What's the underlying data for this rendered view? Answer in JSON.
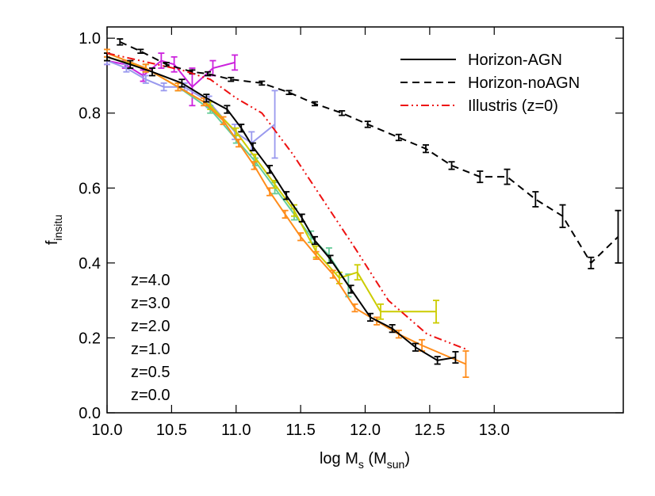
{
  "chart_data": {
    "type": "line",
    "xlabel_parts": [
      {
        "text": "log M"
      },
      {
        "text": "s",
        "sub": true
      },
      {
        "text": " (M"
      },
      {
        "text": "sun",
        "sub": true
      },
      {
        "text": ")"
      }
    ],
    "ylabel_parts": [
      {
        "text": "f"
      },
      {
        "text": "insitu",
        "sub": true
      }
    ],
    "xlim": [
      10,
      14
    ],
    "ylim": [
      0,
      1.03
    ],
    "xticks": [
      {
        "value": 10,
        "label": "10.0"
      },
      10.5,
      {
        "value": 11,
        "label": "11.0"
      },
      11.5,
      {
        "value": 12,
        "label": "12.0"
      },
      12.5,
      {
        "value": 13,
        "label": "13.0"
      }
    ],
    "yticks": [
      {
        "value": 0,
        "label": "0.0"
      },
      0.2,
      0.4,
      0.6,
      0.8,
      {
        "value": 1,
        "label": "1.0"
      }
    ],
    "legend_extra": [
      {
        "name": "Horizon-AGN",
        "color": "#000000",
        "dash": "solid"
      }
    ],
    "series": [
      {
        "name": "z=4.0",
        "color": "#cc22dd",
        "dash": "solid",
        "legend": "label",
        "x": [
          10.0,
          10.14,
          10.28,
          10.42,
          10.52,
          10.66,
          10.82,
          10.99
        ],
        "values": [
          0.94,
          0.93,
          0.9,
          0.94,
          0.93,
          0.87,
          0.92,
          0.935
        ],
        "errors": [
          0.01,
          0.01,
          0.015,
          0.02,
          0.02,
          0.05,
          0.02,
          0.02
        ]
      },
      {
        "name": "z=3.0",
        "color": "#9999ee",
        "dash": "solid",
        "legend": "label",
        "x": [
          10.0,
          10.15,
          10.3,
          10.44,
          10.6,
          10.79,
          10.99,
          11.12,
          11.3
        ],
        "values": [
          0.94,
          0.92,
          0.89,
          0.87,
          0.87,
          0.83,
          0.75,
          0.72,
          0.77
        ],
        "errors": [
          0.01,
          0.01,
          0.01,
          0.01,
          0.01,
          0.015,
          0.02,
          0.03,
          0.09
        ]
      },
      {
        "name": "z=2.0",
        "color": "#66cc99",
        "dash": "solid",
        "legend": "label",
        "x": [
          10.0,
          10.3,
          10.55,
          10.8,
          11.0,
          11.15,
          11.3,
          11.45,
          11.58,
          11.72,
          11.87
        ],
        "values": [
          0.96,
          0.92,
          0.87,
          0.81,
          0.73,
          0.67,
          0.6,
          0.53,
          0.47,
          0.42,
          0.34
        ],
        "errors": [
          0.01,
          0.01,
          0.01,
          0.01,
          0.01,
          0.01,
          0.015,
          0.015,
          0.015,
          0.02,
          0.03
        ]
      },
      {
        "name": "z=1.0",
        "color": "#cccc00",
        "dash": "solid",
        "legend": "label",
        "x": [
          10.0,
          10.3,
          10.55,
          10.8,
          11.0,
          11.15,
          11.3,
          11.45,
          11.62,
          11.8,
          11.94,
          12.12,
          12.55
        ],
        "values": [
          0.95,
          0.92,
          0.87,
          0.82,
          0.75,
          0.68,
          0.61,
          0.54,
          0.43,
          0.36,
          0.375,
          0.27,
          0.27
        ],
        "errors": [
          0.01,
          0.01,
          0.01,
          0.01,
          0.01,
          0.01,
          0.01,
          0.015,
          0.015,
          0.015,
          0.02,
          0.02,
          0.03
        ]
      },
      {
        "name": "z=0.5",
        "color": "#ff8c1a",
        "dash": "solid",
        "legend": "label",
        "x": [
          10.0,
          10.3,
          10.55,
          10.75,
          10.9,
          11.02,
          11.14,
          11.26,
          11.38,
          11.5,
          11.62,
          11.75,
          11.92,
          12.09,
          12.26,
          12.44,
          12.78
        ],
        "values": [
          0.96,
          0.92,
          0.87,
          0.83,
          0.78,
          0.72,
          0.66,
          0.59,
          0.53,
          0.47,
          0.42,
          0.37,
          0.28,
          0.245,
          0.21,
          0.18,
          0.13
        ],
        "errors": [
          0.01,
          0.01,
          0.01,
          0.01,
          0.01,
          0.01,
          0.01,
          0.01,
          0.01,
          0.01,
          0.01,
          0.01,
          0.01,
          0.01,
          0.01,
          0.015,
          0.035
        ]
      },
      {
        "name": "z=0.0",
        "color": "#000000",
        "dash": "solid",
        "legend": "label",
        "x": [
          10.0,
          10.18,
          10.35,
          10.58,
          10.77,
          10.93,
          11.04,
          11.13,
          11.26,
          11.39,
          11.51,
          11.61,
          11.73,
          11.89,
          12.04,
          12.21,
          12.39,
          12.56,
          12.7
        ],
        "values": [
          0.95,
          0.93,
          0.91,
          0.88,
          0.84,
          0.81,
          0.76,
          0.71,
          0.65,
          0.58,
          0.52,
          0.46,
          0.41,
          0.33,
          0.255,
          0.225,
          0.175,
          0.14,
          0.148
        ],
        "errors": [
          0.01,
          0.01,
          0.01,
          0.01,
          0.01,
          0.01,
          0.01,
          0.01,
          0.01,
          0.01,
          0.01,
          0.01,
          0.01,
          0.01,
          0.01,
          0.01,
          0.01,
          0.01,
          0.015
        ]
      },
      {
        "name": "Horizon-noAGN",
        "color": "#000000",
        "dash": "dash",
        "legend": "box",
        "x": [
          10.1,
          10.26,
          10.46,
          10.66,
          10.78,
          10.96,
          11.2,
          11.41,
          11.61,
          11.82,
          12.02,
          12.26,
          12.47,
          12.67,
          12.89,
          13.1,
          13.32,
          13.53,
          13.75,
          13.96
        ],
        "values": [
          0.99,
          0.965,
          0.93,
          0.91,
          0.905,
          0.89,
          0.88,
          0.855,
          0.825,
          0.8,
          0.77,
          0.735,
          0.705,
          0.66,
          0.63,
          0.63,
          0.57,
          0.525,
          0.4,
          0.47
        ],
        "errors": [
          0.008,
          0.005,
          0.005,
          0.005,
          0.005,
          0.005,
          0.005,
          0.005,
          0.005,
          0.006,
          0.008,
          0.008,
          0.01,
          0.01,
          0.015,
          0.02,
          0.02,
          0.03,
          0.015,
          0.07
        ]
      },
      {
        "name": "Illustris (z=0)",
        "color": "#ee1111",
        "dash": "dashdotdot",
        "legend": "box",
        "x": [
          10.0,
          10.58,
          10.8,
          11.0,
          11.2,
          11.44,
          11.69,
          11.93,
          12.18,
          12.48,
          12.78
        ],
        "values": [
          0.96,
          0.915,
          0.89,
          0.84,
          0.8,
          0.69,
          0.56,
          0.435,
          0.3,
          0.21,
          0.17
        ]
      }
    ]
  }
}
